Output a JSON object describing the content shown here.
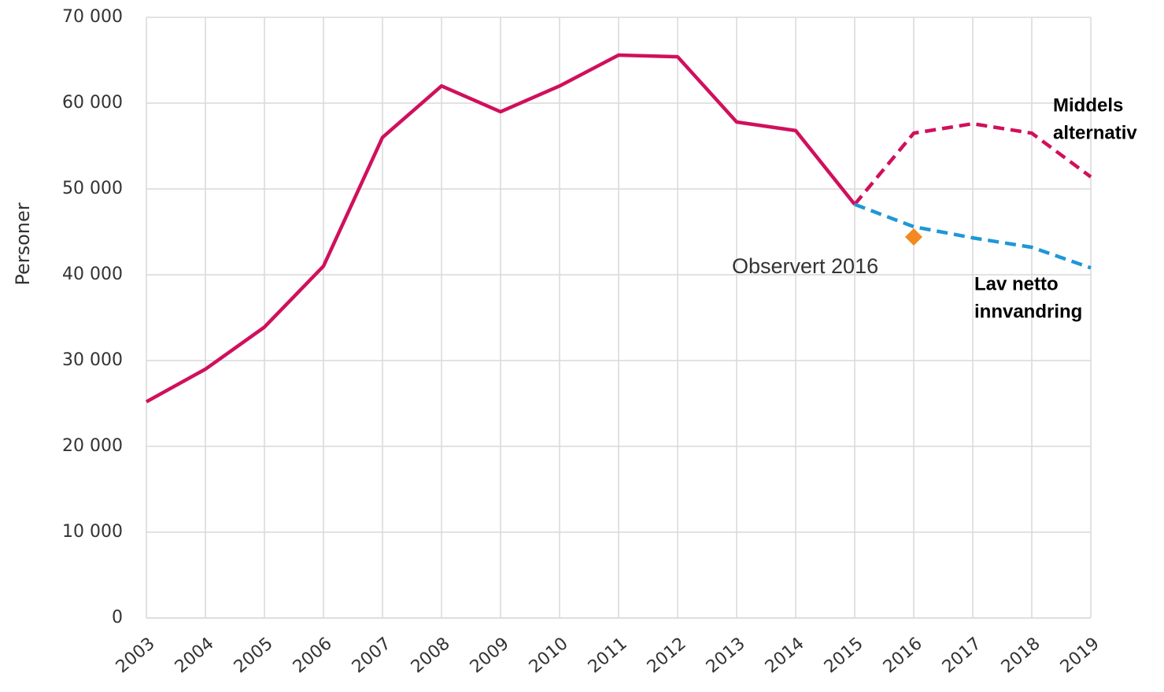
{
  "chart_data": {
    "type": "line",
    "y_label": "Personer",
    "categories": [
      "2003",
      "2004",
      "2005",
      "2006",
      "2007",
      "2008",
      "2009",
      "2010",
      "2011",
      "2012",
      "2013",
      "2014",
      "2015",
      "2016",
      "2017",
      "2018",
      "2019"
    ],
    "series": [
      {
        "color": "#d0105c",
        "dashed": false,
        "values": [
          25200,
          29000,
          33900,
          41000,
          56000,
          62000,
          59000,
          62000,
          65600,
          65400,
          57800,
          56800,
          48200,
          null,
          null,
          null,
          null
        ]
      },
      {
        "name": [
          "Middels",
          "alternativ"
        ],
        "color": "#d0105c",
        "dashed": true,
        "values": [
          null,
          null,
          null,
          null,
          null,
          null,
          null,
          null,
          null,
          null,
          null,
          null,
          48200,
          56500,
          57600,
          56500,
          51400
        ]
      },
      {
        "name": [
          "Lav netto",
          "innvandring"
        ],
        "color": "#1f97d6",
        "dashed": true,
        "values": [
          null,
          null,
          null,
          null,
          null,
          null,
          null,
          null,
          null,
          null,
          null,
          null,
          48200,
          45600,
          44300,
          43200,
          40800
        ]
      },
      {
        "name": [
          "Observert 2016"
        ],
        "color": "#f4891f",
        "marker": "diamond",
        "values": [
          null,
          null,
          null,
          null,
          null,
          null,
          null,
          null,
          null,
          null,
          null,
          null,
          null,
          44400,
          null,
          null,
          null
        ]
      }
    ],
    "ylim": [
      0,
      70000
    ],
    "yticks": [
      0,
      {
        "value": 10000,
        "label": "10 000"
      },
      {
        "value": 20000,
        "label": "20 000"
      },
      {
        "value": 30000,
        "label": "30 000"
      },
      {
        "value": 40000,
        "label": "40 000"
      },
      {
        "value": 50000,
        "label": "50 000"
      },
      {
        "value": 60000,
        "label": "60 000"
      },
      {
        "value": 70000,
        "label": "70 000"
      }
    ],
    "grid": true
  }
}
